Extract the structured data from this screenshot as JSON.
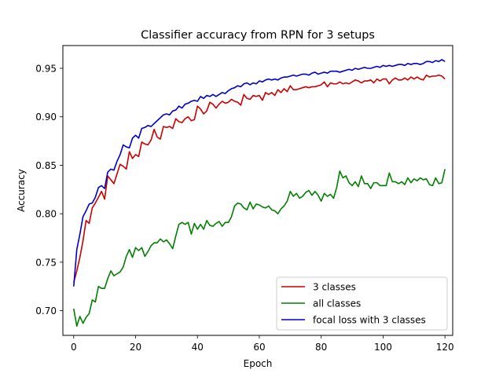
{
  "chart_data": {
    "type": "line",
    "title": "Classifier accuracy from RPN for 3 setups",
    "xlabel": "Epoch",
    "ylabel": "Accuracy",
    "xlim": [
      -3.5,
      122.5
    ],
    "ylim": [
      0.6745,
      0.9735
    ],
    "xticks": [
      0,
      20,
      40,
      60,
      80,
      100,
      120
    ],
    "xtick_labels": [
      "0",
      "20",
      "40",
      "60",
      "80",
      "100",
      "120"
    ],
    "yticks": [
      0.7,
      0.75,
      0.8,
      0.85,
      0.9,
      0.95
    ],
    "ytick_labels": [
      "0.70",
      "0.75",
      "0.80",
      "0.85",
      "0.90",
      "0.95"
    ],
    "grid": false,
    "legend_position": "lower-right",
    "series": [
      {
        "name": "3 classes",
        "color": "#cc0000",
        "values": [
          0.729,
          0.741,
          0.755,
          0.772,
          0.793,
          0.79,
          0.806,
          0.811,
          0.817,
          0.823,
          0.815,
          0.839,
          0.835,
          0.831,
          0.841,
          0.851,
          0.849,
          0.846,
          0.864,
          0.857,
          0.861,
          0.859,
          0.874,
          0.872,
          0.871,
          0.876,
          0.887,
          0.879,
          0.877,
          0.89,
          0.889,
          0.89,
          0.888,
          0.898,
          0.895,
          0.894,
          0.898,
          0.9,
          0.896,
          0.897,
          0.911,
          0.908,
          0.903,
          0.906,
          0.915,
          0.913,
          0.909,
          0.913,
          0.916,
          0.914,
          0.915,
          0.918,
          0.916,
          0.915,
          0.912,
          0.923,
          0.919,
          0.918,
          0.922,
          0.921,
          0.922,
          0.917,
          0.925,
          0.923,
          0.925,
          0.922,
          0.928,
          0.925,
          0.929,
          0.926,
          0.932,
          0.928,
          0.928,
          0.929,
          0.93,
          0.931,
          0.93,
          0.931,
          0.931,
          0.932,
          0.933,
          0.936,
          0.931,
          0.935,
          0.934,
          0.934,
          0.936,
          0.934,
          0.935,
          0.934,
          0.936,
          0.938,
          0.937,
          0.935,
          0.937,
          0.937,
          0.938,
          0.935,
          0.939,
          0.937,
          0.939,
          0.939,
          0.934,
          0.938,
          0.94,
          0.938,
          0.938,
          0.94,
          0.938,
          0.941,
          0.939,
          0.941,
          0.939,
          0.938,
          0.943,
          0.941,
          0.942,
          0.942,
          0.943,
          0.942,
          0.939
        ]
      },
      {
        "name": "all classes",
        "color": "#008000",
        "values": [
          0.702,
          0.684,
          0.694,
          0.687,
          0.693,
          0.697,
          0.711,
          0.709,
          0.725,
          0.723,
          0.723,
          0.733,
          0.741,
          0.736,
          0.738,
          0.74,
          0.745,
          0.756,
          0.763,
          0.755,
          0.765,
          0.762,
          0.765,
          0.756,
          0.761,
          0.767,
          0.77,
          0.77,
          0.774,
          0.771,
          0.773,
          0.769,
          0.764,
          0.777,
          0.789,
          0.791,
          0.789,
          0.791,
          0.779,
          0.79,
          0.784,
          0.789,
          0.784,
          0.793,
          0.788,
          0.787,
          0.79,
          0.792,
          0.787,
          0.791,
          0.791,
          0.797,
          0.808,
          0.811,
          0.81,
          0.806,
          0.804,
          0.812,
          0.805,
          0.81,
          0.809,
          0.807,
          0.806,
          0.808,
          0.804,
          0.803,
          0.8,
          0.805,
          0.808,
          0.813,
          0.823,
          0.818,
          0.821,
          0.816,
          0.818,
          0.822,
          0.824,
          0.819,
          0.823,
          0.819,
          0.813,
          0.821,
          0.818,
          0.82,
          0.816,
          0.827,
          0.844,
          0.837,
          0.839,
          0.832,
          0.829,
          0.833,
          0.828,
          0.839,
          0.831,
          0.831,
          0.826,
          0.832,
          0.832,
          0.829,
          0.829,
          0.829,
          0.842,
          0.833,
          0.833,
          0.831,
          0.833,
          0.83,
          0.837,
          0.832,
          0.836,
          0.834,
          0.837,
          0.835,
          0.836,
          0.83,
          0.829,
          0.837,
          0.831,
          0.832,
          0.846
        ]
      },
      {
        "name": "focal loss with 3 classes",
        "color": "#0000cc",
        "values": [
          0.725,
          0.763,
          0.779,
          0.797,
          0.803,
          0.81,
          0.811,
          0.817,
          0.827,
          0.829,
          0.826,
          0.843,
          0.846,
          0.845,
          0.854,
          0.861,
          0.871,
          0.869,
          0.868,
          0.878,
          0.881,
          0.878,
          0.888,
          0.889,
          0.891,
          0.89,
          0.893,
          0.896,
          0.899,
          0.902,
          0.903,
          0.902,
          0.906,
          0.907,
          0.911,
          0.909,
          0.913,
          0.914,
          0.916,
          0.917,
          0.916,
          0.921,
          0.919,
          0.922,
          0.921,
          0.923,
          0.921,
          0.923,
          0.925,
          0.924,
          0.927,
          0.929,
          0.93,
          0.932,
          0.931,
          0.934,
          0.935,
          0.933,
          0.935,
          0.934,
          0.937,
          0.936,
          0.938,
          0.939,
          0.938,
          0.939,
          0.938,
          0.94,
          0.941,
          0.941,
          0.942,
          0.943,
          0.942,
          0.943,
          0.944,
          0.944,
          0.943,
          0.945,
          0.946,
          0.944,
          0.945,
          0.946,
          0.945,
          0.947,
          0.947,
          0.947,
          0.946,
          0.947,
          0.948,
          0.949,
          0.948,
          0.95,
          0.949,
          0.95,
          0.951,
          0.95,
          0.95,
          0.951,
          0.952,
          0.951,
          0.953,
          0.952,
          0.953,
          0.952,
          0.953,
          0.954,
          0.954,
          0.953,
          0.955,
          0.954,
          0.955,
          0.955,
          0.954,
          0.955,
          0.957,
          0.957,
          0.956,
          0.958,
          0.957,
          0.959,
          0.957
        ]
      }
    ]
  }
}
